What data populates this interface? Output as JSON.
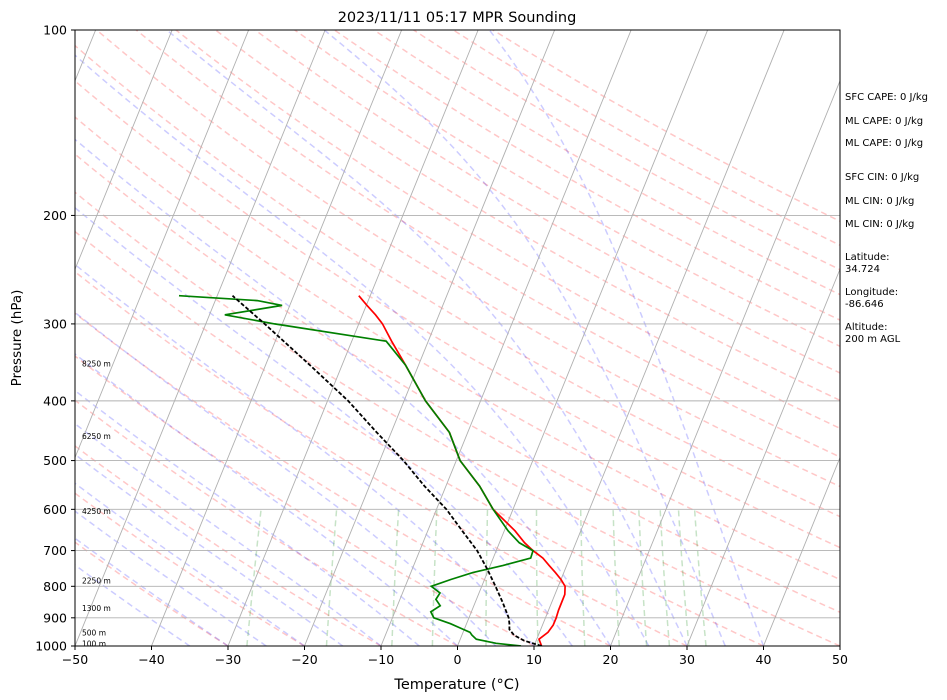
{
  "chart_data": {
    "type": "line",
    "title": "2023/11/11 05:17 MPR Sounding",
    "xlabel": "Temperature (°C)",
    "ylabel": "Pressure (hPa)",
    "xlim": [
      -50,
      50
    ],
    "ylim": [
      1000,
      100
    ],
    "y_scale": "log",
    "grid": true,
    "x_ticks": [
      "−50",
      "−40",
      "−30",
      "−20",
      "−10",
      "0",
      "10",
      "20",
      "30",
      "40",
      "50"
    ],
    "y_ticks": [
      "100",
      "200",
      "300",
      "400",
      "500",
      "600",
      "700",
      "800",
      "900",
      "1000"
    ],
    "height_labels": [
      "8250 m",
      "6250 m",
      "4250 m",
      "2250 m",
      "1300 m",
      "500 m",
      "100 m"
    ],
    "series": [
      {
        "id": "temperature",
        "color": "#ff0000",
        "pressure": [
          1000,
          975,
          950,
          925,
          900,
          875,
          850,
          825,
          800,
          780,
          760,
          740,
          720,
          700,
          680,
          650,
          600,
          550,
          500,
          450,
          400,
          350,
          320,
          300,
          290,
          280,
          270
        ],
        "values": [
          11,
          10.3,
          11.1,
          11.4,
          11.4,
          11.3,
          11.3,
          11.3,
          10.9,
          10,
          8.9,
          7.7,
          6.5,
          4.8,
          3.3,
          1.4,
          -2.6,
          -5.6,
          -9.5,
          -12.4,
          -17.2,
          -21.7,
          -24.8,
          -26.9,
          -28.3,
          -29.9,
          -31.5
        ]
      },
      {
        "id": "dewpoint",
        "color": "#008000",
        "pressure": [
          1000,
          990,
          975,
          960,
          950,
          935,
          920,
          900,
          880,
          860,
          840,
          820,
          800,
          780,
          760,
          740,
          720,
          700,
          680,
          650,
          600,
          550,
          500,
          450,
          400,
          350,
          320,
          300,
          290,
          280,
          275,
          270
        ],
        "values": [
          8.3,
          4.9,
          2.1,
          1.3,
          0.9,
          -0.6,
          -2.1,
          -4.6,
          -5.3,
          -4.4,
          -5.3,
          -5.1,
          -6.6,
          -4.4,
          -1.9,
          1.7,
          4.9,
          4.8,
          2.6,
          0.5,
          -2.6,
          -5.6,
          -9.5,
          -12.4,
          -17.2,
          -21.7,
          -25.5,
          -41,
          -48,
          -41,
          -44.5,
          -55
        ]
      },
      {
        "id": "parcel-profile",
        "color": "#000000",
        "linestyle": "dashed",
        "pressure": [
          1000,
          980,
          960,
          940,
          920,
          900,
          850,
          800,
          750,
          700,
          650,
          600,
          550,
          500,
          450,
          400,
          350,
          300,
          270
        ],
        "values": [
          11,
          8.4,
          6.8,
          5.9,
          5.6,
          5.2,
          3.6,
          1.8,
          -0.2,
          -2.5,
          -5.5,
          -8.7,
          -12.8,
          -16.9,
          -21.9,
          -27.3,
          -34.2,
          -42.3,
          -48
        ]
      }
    ],
    "annotations": [
      {
        "label": "SFC CAPE: 0 J/kg"
      },
      {
        "label": "ML CAPE: 0 J/kg"
      },
      {
        "label": "ML CAPE: 0 J/kg"
      },
      {
        "label": "SFC CIN: 0 J/kg"
      },
      {
        "label": "ML CIN: 0 J/kg"
      },
      {
        "label": "ML CIN: 0 J/kg"
      },
      {
        "label": "Latitude:\n34.724"
      },
      {
        "label": "Longitude:\n-86.646"
      },
      {
        "label": "Altitude:\n200 m AGL"
      }
    ]
  }
}
